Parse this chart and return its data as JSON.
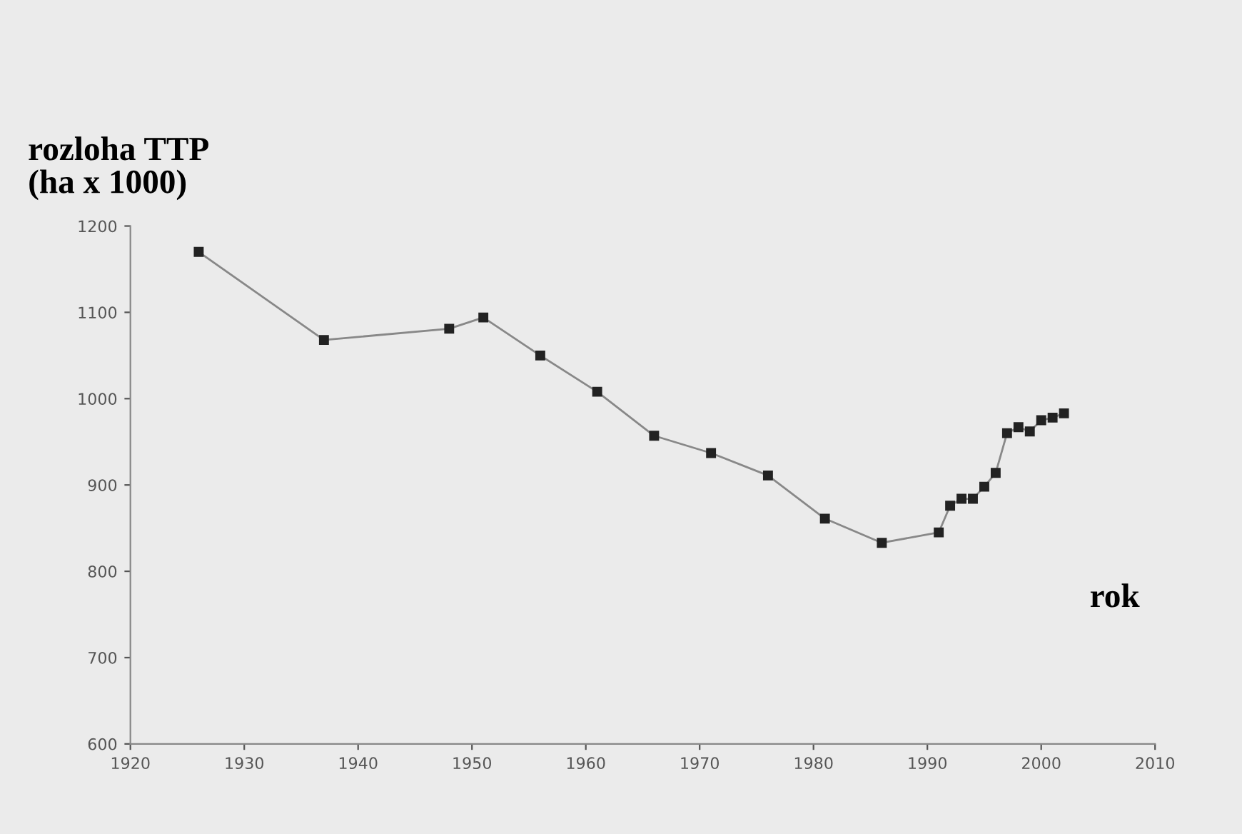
{
  "chart_data": {
    "type": "line",
    "ylabel": "rozloha TTP\n(ha x 1000)",
    "xlabel": "rok",
    "x": [
      1926,
      1937,
      1948,
      1951,
      1956,
      1961,
      1966,
      1971,
      1976,
      1981,
      1986,
      1991,
      1992,
      1993,
      1994,
      1995,
      1996,
      1997,
      1998,
      1999,
      2000,
      2001,
      2002
    ],
    "series": [
      {
        "color": "#222222",
        "values": [
          1170,
          1068,
          1081,
          1094,
          1050,
          1008,
          957,
          937,
          911,
          861,
          833,
          845,
          876,
          884,
          884,
          898,
          914,
          960,
          967,
          962,
          975,
          978,
          983
        ]
      }
    ],
    "xlim": [
      1920,
      2010
    ],
    "xticks": [
      1920,
      1930,
      1940,
      1950,
      1960,
      1970,
      1980,
      1990,
      2000,
      2010
    ],
    "ylim": [
      600,
      1200
    ],
    "yticks": [
      600,
      700,
      800,
      900,
      1000,
      1100,
      1200
    ],
    "marker": "square",
    "line_style": "solid",
    "grid": false
  }
}
